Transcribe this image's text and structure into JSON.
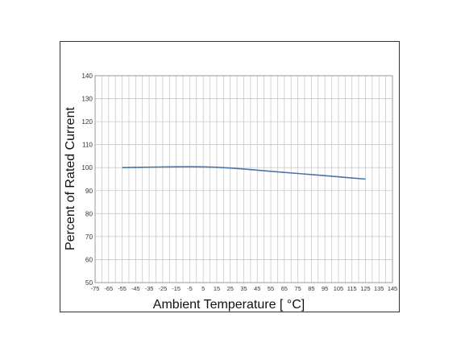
{
  "chart_data": {
    "type": "line",
    "title": "",
    "xlabel": "Ambient Temperature [ °C]",
    "ylabel": "Percent of Rated Current",
    "xlim": [
      -75,
      145
    ],
    "ylim": [
      50,
      140
    ],
    "x_ticks": [
      -75,
      -65,
      -55,
      -45,
      -35,
      -25,
      -15,
      -5,
      5,
      15,
      25,
      35,
      45,
      55,
      65,
      75,
      85,
      95,
      105,
      115,
      125,
      135,
      145
    ],
    "y_ticks": [
      50,
      60,
      70,
      80,
      90,
      100,
      110,
      120,
      130,
      140
    ],
    "grid": true,
    "line_color": "#4a74a8",
    "series": [
      {
        "x": [
          -55,
          -35,
          -15,
          5,
          25,
          45,
          65,
          85,
          105,
          125
        ],
        "y": [
          100,
          100.2,
          100.4,
          100.4,
          99.9,
          98.9,
          97.9,
          97.0,
          96.0,
          95.0
        ]
      }
    ]
  }
}
